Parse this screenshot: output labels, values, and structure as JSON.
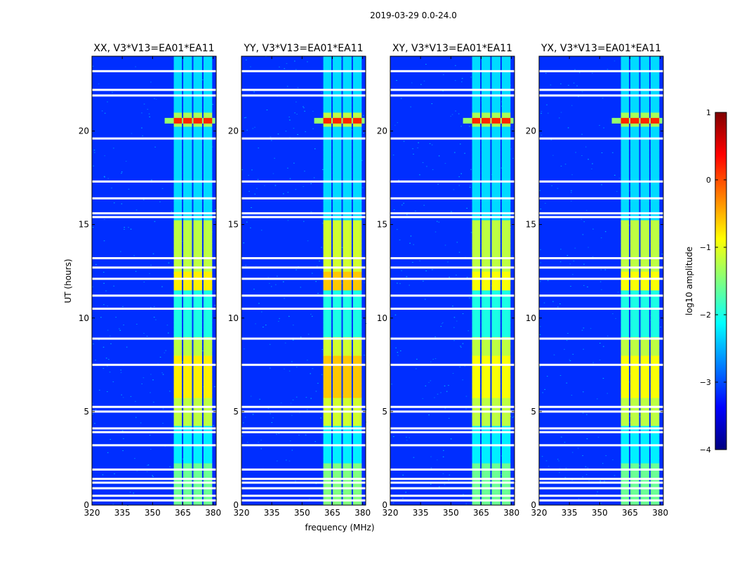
{
  "chart_data": {
    "type": "heatmap",
    "title": "2019-03-29 0.0-24.0",
    "xlabel": "frequency (MHz)",
    "ylabel": "UT (hours)",
    "xlim": [
      320,
      381.5
    ],
    "ylim": [
      0,
      24
    ],
    "x_ticks": [
      "320",
      "335",
      "350",
      "365",
      "380"
    ],
    "y_ticks": [
      "0",
      "5",
      "10",
      "15",
      "20"
    ],
    "panels": [
      {
        "title": "XX, V3*V13=EA01*EA11",
        "band_level": -1.2,
        "hot_level": -0.8
      },
      {
        "title": "YY, V3*V13=EA01*EA11",
        "band_level": -1.1,
        "hot_level": -0.6
      },
      {
        "title": "XY, V3*V13=EA01*EA11",
        "band_level": -1.2,
        "hot_level": -0.9
      },
      {
        "title": "YX, V3*V13=EA01*EA11",
        "band_level": -1.2,
        "hot_level": -0.9
      }
    ],
    "band_freq_ranges": [
      [
        360.5,
        364.5
      ],
      [
        365.2,
        369.5
      ],
      [
        370.2,
        374.5
      ],
      [
        375.2,
        379.5
      ]
    ],
    "rfi_event": {
      "ut_range": [
        20.4,
        20.7
      ],
      "freq_range": [
        356,
        381
      ],
      "level": 0.2
    },
    "blank_ut_rows": [
      0.25,
      0.5,
      0.9,
      1.2,
      1.4,
      1.9,
      3.2,
      3.9,
      4.1,
      5.0,
      5.25,
      7.5,
      8.9,
      10.5,
      11.2,
      12.1,
      12.7,
      13.2,
      15.4,
      15.6,
      16.4,
      17.3,
      19.6,
      21.9,
      22.2,
      23.2
    ],
    "colorbar": {
      "label": "log10 amplitude",
      "range": [
        -4,
        1
      ],
      "ticks": [
        "1",
        "0",
        "−1",
        "−2",
        "−3",
        "−4"
      ],
      "tick_values": [
        1,
        0,
        -1,
        -2,
        -3,
        -4
      ]
    }
  }
}
